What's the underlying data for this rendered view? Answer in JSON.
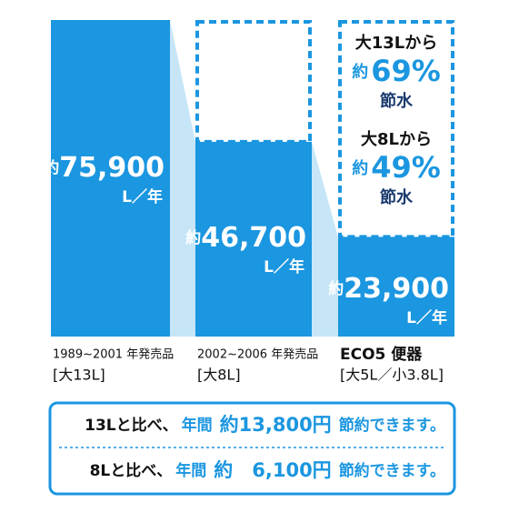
{
  "chart_data": {
    "type": "bar",
    "categories": [
      "1989~2001 年発売品",
      "2002~2006 年発売品",
      "ECO5 便器"
    ],
    "category_notes": [
      "[大13L]",
      "[大8L]",
      "[大5L／小3.8L]"
    ],
    "values": [
      75900,
      46700,
      23900
    ],
    "value_labels": [
      "75,900",
      "46,700",
      "23,900"
    ],
    "value_prefix": "約",
    "value_unit": "L／年",
    "color": "#1b96e0",
    "connector_color": "#c6e6f8",
    "annotations": [
      {
        "from": "大13Lから",
        "prefix": "約",
        "amount": "69%",
        "word": "節水"
      },
      {
        "from": "大8Lから",
        "prefix": "約",
        "amount": "49%",
        "word": "節水"
      }
    ],
    "footer": [
      {
        "lead": "13Lと比べ、",
        "period": "年間",
        "amount": "約13,800円",
        "tail": "節約できます。"
      },
      {
        "lead": "8Lと比べ、",
        "period": "年間",
        "amount": "約　6,100円",
        "tail": "節約できます。"
      }
    ]
  }
}
